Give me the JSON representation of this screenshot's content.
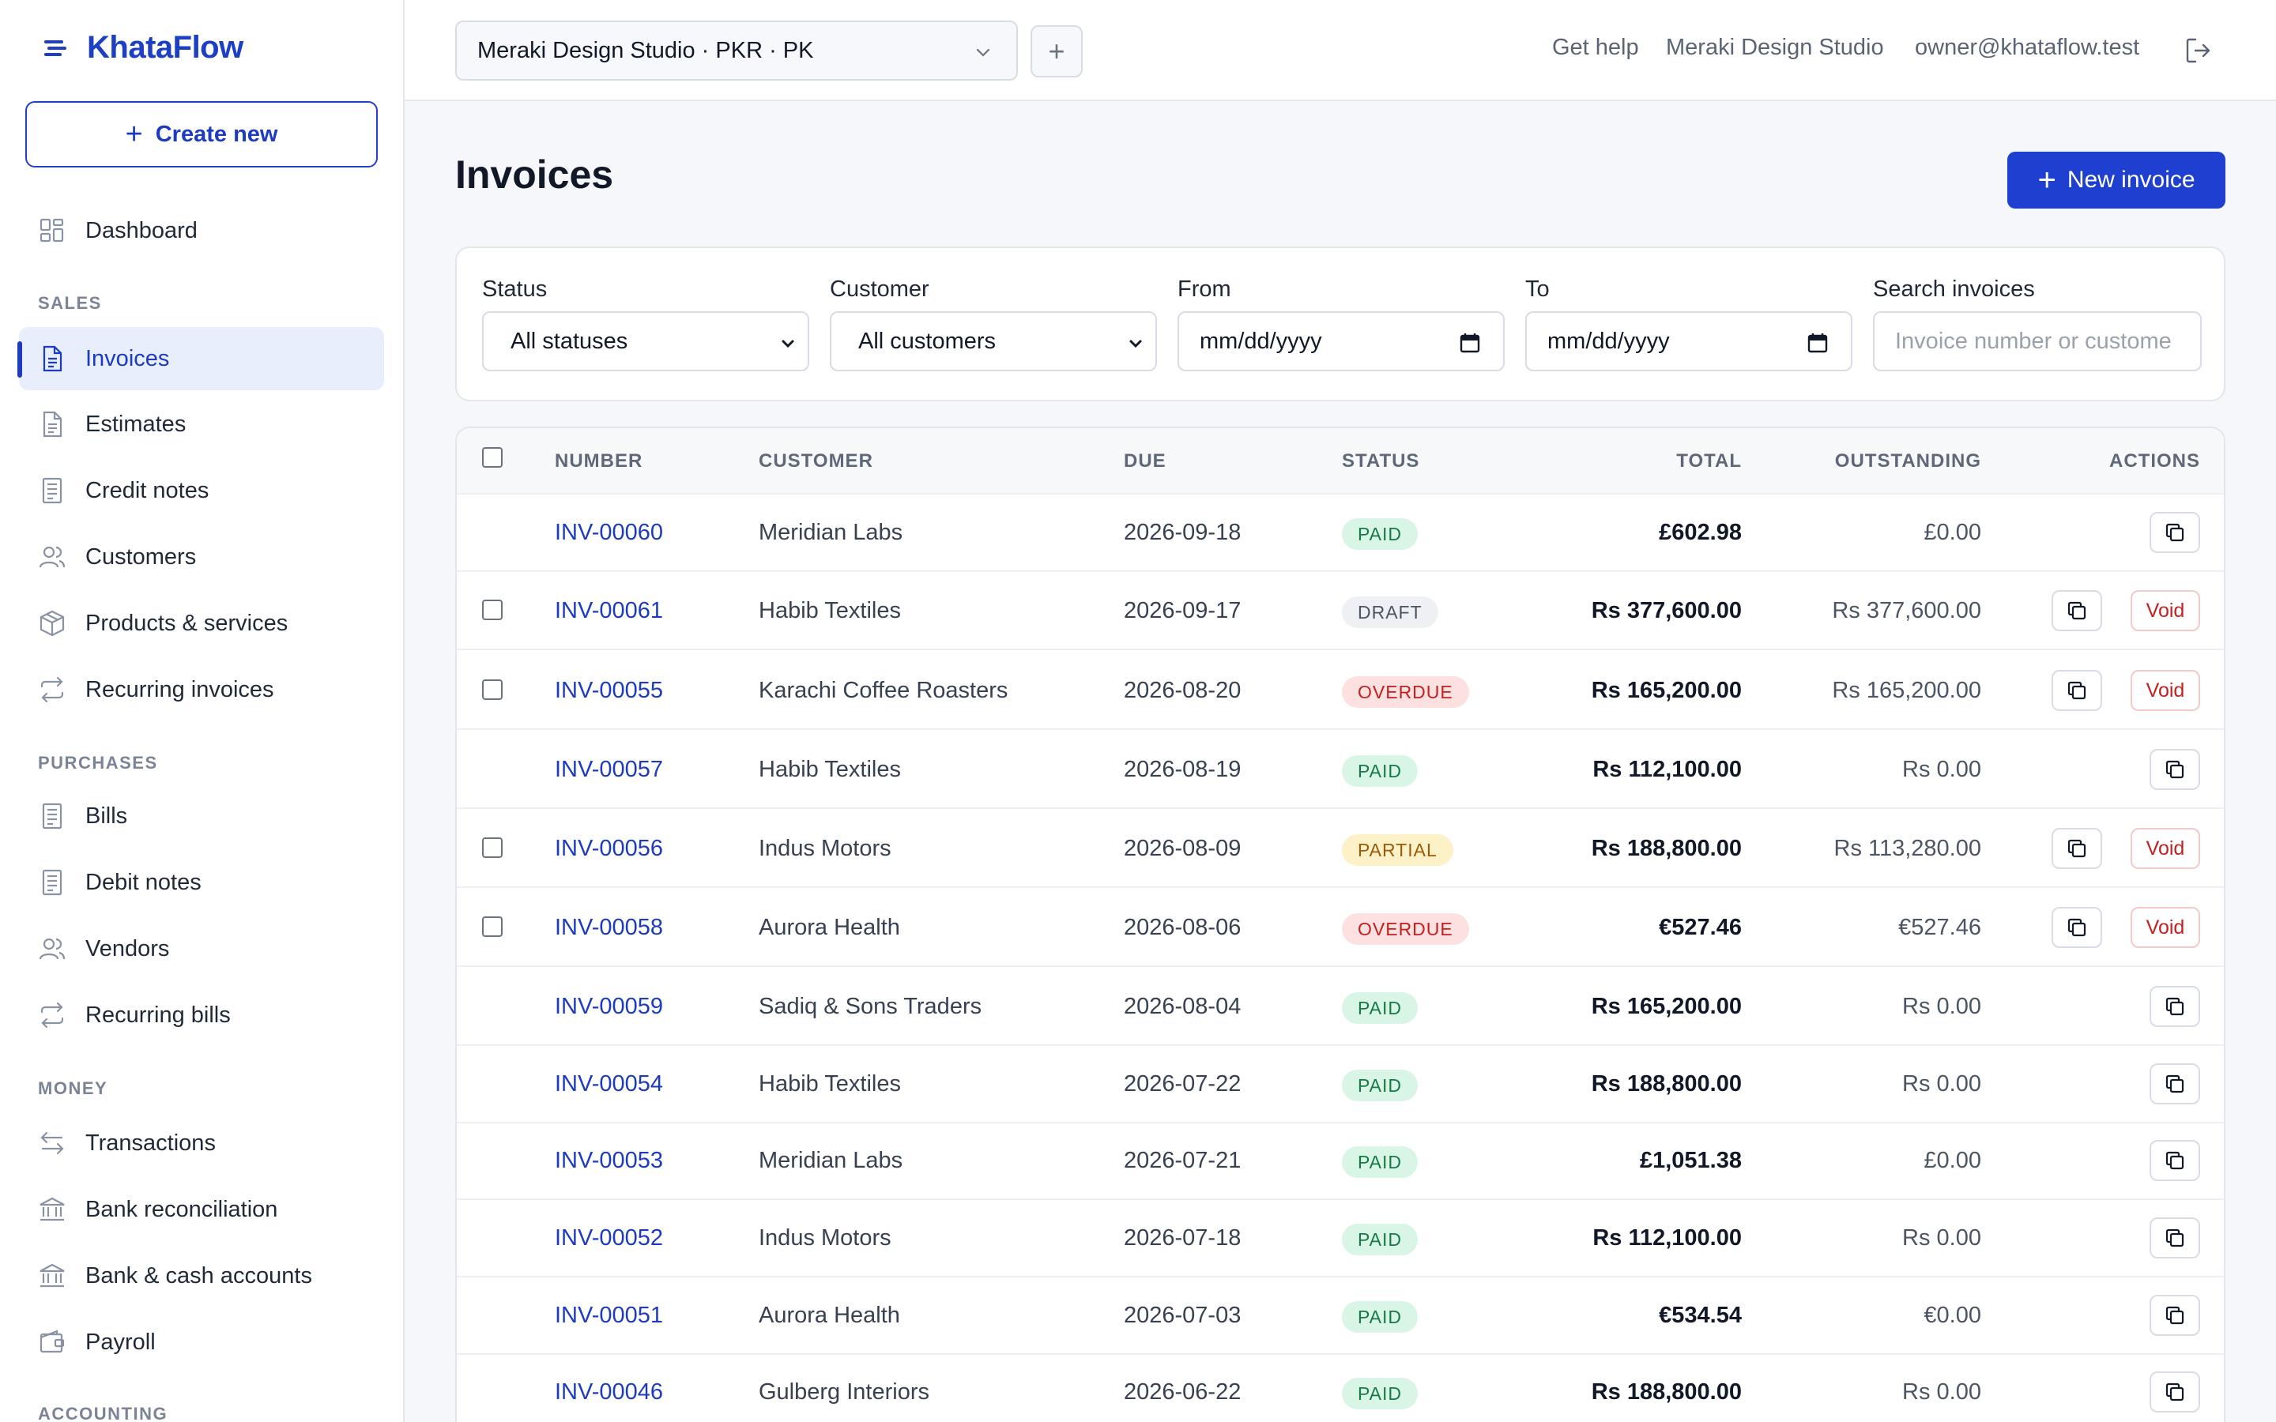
{
  "app": {
    "brand": "KhataFlow",
    "create_new_label": "Create new"
  },
  "sidebar": {
    "dashboard": "Dashboard",
    "sections": {
      "sales": "SALES",
      "purchases": "PURCHASES",
      "money": "MONEY",
      "accounting": "ACCOUNTING"
    },
    "sales_items": [
      "Invoices",
      "Estimates",
      "Credit notes",
      "Customers",
      "Products & services",
      "Recurring invoices"
    ],
    "purchases_items": [
      "Bills",
      "Debit notes",
      "Vendors",
      "Recurring bills"
    ],
    "money_items": [
      "Transactions",
      "Bank reconciliation",
      "Bank & cash accounts",
      "Payroll"
    ],
    "active_item": "Invoices"
  },
  "topbar": {
    "org_select_value": "Meraki Design Studio · PKR · PK",
    "add_org_label": "+",
    "get_help": "Get help",
    "org_name": "Meraki Design Studio",
    "user_email": "owner@khataflow.test"
  },
  "page": {
    "title": "Invoices",
    "new_invoice_label": "New invoice"
  },
  "filters": {
    "status_label": "Status",
    "status_value": "All statuses",
    "customer_label": "Customer",
    "customer_value": "All customers",
    "from_label": "From",
    "from_value": "mm/dd/yyyy",
    "to_label": "To",
    "to_value": "mm/dd/yyyy",
    "search_label": "Search invoices",
    "search_placeholder": "Invoice number or custome"
  },
  "table": {
    "headers": {
      "number": "NUMBER",
      "customer": "CUSTOMER",
      "due": "DUE",
      "status": "STATUS",
      "total": "TOTAL",
      "outstanding": "OUTSTANDING",
      "actions": "ACTIONS"
    },
    "void_label": "Void",
    "rows": [
      {
        "number": "INV-00060",
        "customer": "Meridian Labs",
        "due": "2026-09-18",
        "status": "PAID",
        "total": "£602.98",
        "outstanding": "£0.00",
        "selectable": false,
        "voidable": false
      },
      {
        "number": "INV-00061",
        "customer": "Habib Textiles",
        "due": "2026-09-17",
        "status": "DRAFT",
        "total": "Rs 377,600.00",
        "outstanding": "Rs 377,600.00",
        "selectable": true,
        "voidable": true
      },
      {
        "number": "INV-00055",
        "customer": "Karachi Coffee Roasters",
        "due": "2026-08-20",
        "status": "OVERDUE",
        "total": "Rs 165,200.00",
        "outstanding": "Rs 165,200.00",
        "selectable": true,
        "voidable": true
      },
      {
        "number": "INV-00057",
        "customer": "Habib Textiles",
        "due": "2026-08-19",
        "status": "PAID",
        "total": "Rs 112,100.00",
        "outstanding": "Rs 0.00",
        "selectable": false,
        "voidable": false
      },
      {
        "number": "INV-00056",
        "customer": "Indus Motors",
        "due": "2026-08-09",
        "status": "PARTIAL",
        "total": "Rs 188,800.00",
        "outstanding": "Rs 113,280.00",
        "selectable": true,
        "voidable": true
      },
      {
        "number": "INV-00058",
        "customer": "Aurora Health",
        "due": "2026-08-06",
        "status": "OVERDUE",
        "total": "€527.46",
        "outstanding": "€527.46",
        "selectable": true,
        "voidable": true
      },
      {
        "number": "INV-00059",
        "customer": "Sadiq & Sons Traders",
        "due": "2026-08-04",
        "status": "PAID",
        "total": "Rs 165,200.00",
        "outstanding": "Rs 0.00",
        "selectable": false,
        "voidable": false
      },
      {
        "number": "INV-00054",
        "customer": "Habib Textiles",
        "due": "2026-07-22",
        "status": "PAID",
        "total": "Rs 188,800.00",
        "outstanding": "Rs 0.00",
        "selectable": false,
        "voidable": false
      },
      {
        "number": "INV-00053",
        "customer": "Meridian Labs",
        "due": "2026-07-21",
        "status": "PAID",
        "total": "£1,051.38",
        "outstanding": "£0.00",
        "selectable": false,
        "voidable": false
      },
      {
        "number": "INV-00052",
        "customer": "Indus Motors",
        "due": "2026-07-18",
        "status": "PAID",
        "total": "Rs 112,100.00",
        "outstanding": "Rs 0.00",
        "selectable": false,
        "voidable": false
      },
      {
        "number": "INV-00051",
        "customer": "Aurora Health",
        "due": "2026-07-03",
        "status": "PAID",
        "total": "€534.54",
        "outstanding": "€0.00",
        "selectable": false,
        "voidable": false
      },
      {
        "number": "INV-00046",
        "customer": "Gulberg Interiors",
        "due": "2026-06-22",
        "status": "PAID",
        "total": "Rs 188,800.00",
        "outstanding": "Rs 0.00",
        "selectable": false,
        "voidable": false
      }
    ]
  },
  "colors": {
    "brand": "#1d3fc4",
    "primary_button": "#1e3fd0",
    "paid": "#177a45",
    "overdue": "#c42020",
    "partial": "#9a5b08"
  }
}
